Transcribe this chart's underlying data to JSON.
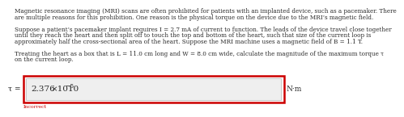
{
  "body_text_lines": [
    "Magnetic resonance imaging (MRI) scans are often prohibited for patients with an implanted device, such as a pacemaker. There",
    "are multiple reasons for this prohibition. One reason is the physical torque on the device due to the MRI’s magnetic field.",
    "",
    "Suppose a patient’s pacemaker implant requires I = 2.7 mA of current to function. The leads of the device travel close together",
    "until they reach the heart and then split off to touch the top and bottom of the heart, such that size of the current loop is",
    "approximately half the cross-sectional area of the heart. Suppose the MRI machine uses a magnetic field of B = 1.1 T.",
    "",
    "Treating the heart as a box that is L = 11.0 cm long and W = 8.0 cm wide, calculate the magnitude of the maximum torque τ",
    "on the current loop."
  ],
  "answer_value": "2.376",
  "answer_exp_base": "×10",
  "answer_exp_power": "−5",
  "label_left": "τ =",
  "label_right": "N·m",
  "incorrect_text": "Incorrect",
  "box_bg": "#efefef",
  "box_border": "#cc0000",
  "incorrect_color": "#cc0000",
  "text_color": "#2a2a2a",
  "background_color": "#ffffff",
  "body_fontsize": 5.2,
  "answer_fontsize": 7.5,
  "superscript_fontsize": 5.5,
  "label_fontsize": 6.5,
  "incorrect_fontsize": 4.5
}
